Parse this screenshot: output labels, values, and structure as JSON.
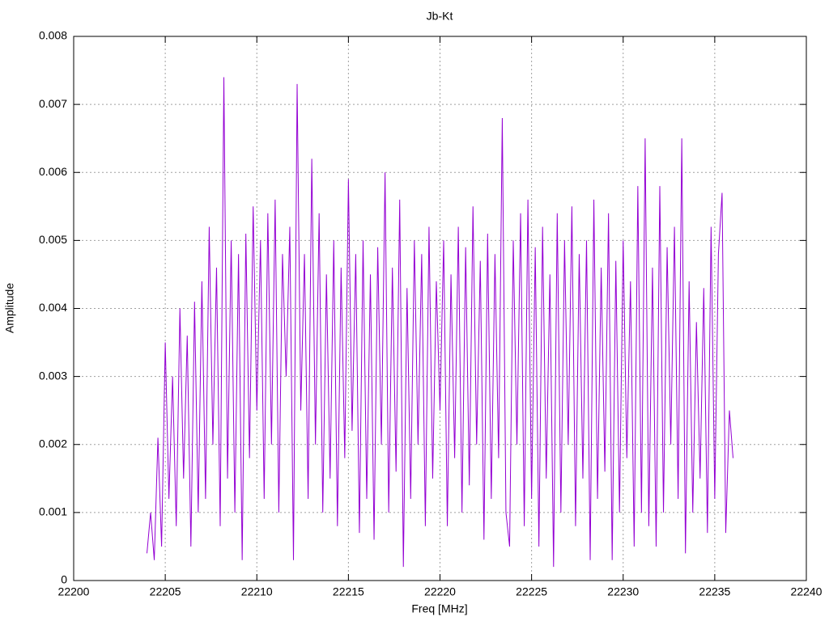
{
  "chart_data": {
    "type": "line",
    "title": "Jb-Kt",
    "x_label": "Freq [MHz]",
    "y_label": "Amplitude",
    "color": "#9400d3",
    "grid": true,
    "xlim": [
      22200,
      22240
    ],
    "xticks": [
      22200,
      22205,
      22210,
      22215,
      22220,
      22225,
      22230,
      22235,
      22240
    ],
    "ylim": [
      0,
      0.008
    ],
    "yticks": [
      0,
      0.001,
      0.002,
      0.003,
      0.004,
      0.005,
      0.006,
      0.007,
      0.008
    ],
    "x": [
      22204.0,
      22204.2,
      22204.4,
      22204.6,
      22204.8,
      22205.0,
      22205.2,
      22205.4,
      22205.6,
      22205.8,
      22206.0,
      22206.2,
      22206.4,
      22206.6,
      22206.8,
      22207.0,
      22207.2,
      22207.4,
      22207.6,
      22207.8,
      22208.0,
      22208.2,
      22208.4,
      22208.6,
      22208.8,
      22209.0,
      22209.2,
      22209.4,
      22209.6,
      22209.8,
      22210.0,
      22210.2,
      22210.4,
      22210.6,
      22210.8,
      22211.0,
      22211.2,
      22211.4,
      22211.6,
      22211.8,
      22212.0,
      22212.2,
      22212.4,
      22212.6,
      22212.8,
      22213.0,
      22213.2,
      22213.4,
      22213.6,
      22213.8,
      22214.0,
      22214.2,
      22214.4,
      22214.6,
      22214.8,
      22215.0,
      22215.2,
      22215.4,
      22215.6,
      22215.8,
      22216.0,
      22216.2,
      22216.4,
      22216.6,
      22216.8,
      22217.0,
      22217.2,
      22217.4,
      22217.6,
      22217.8,
      22218.0,
      22218.2,
      22218.4,
      22218.6,
      22218.8,
      22219.0,
      22219.2,
      22219.4,
      22219.6,
      22219.8,
      22220.0,
      22220.2,
      22220.4,
      22220.6,
      22220.8,
      22221.0,
      22221.2,
      22221.4,
      22221.6,
      22221.8,
      22222.0,
      22222.2,
      22222.4,
      22222.6,
      22222.8,
      22223.0,
      22223.2,
      22223.4,
      22223.6,
      22223.8,
      22224.0,
      22224.2,
      22224.4,
      22224.6,
      22224.8,
      22225.0,
      22225.2,
      22225.4,
      22225.6,
      22225.8,
      22226.0,
      22226.2,
      22226.4,
      22226.6,
      22226.8,
      22227.0,
      22227.2,
      22227.4,
      22227.6,
      22227.8,
      22228.0,
      22228.2,
      22228.4,
      22228.6,
      22228.8,
      22229.0,
      22229.2,
      22229.4,
      22229.6,
      22229.8,
      22230.0,
      22230.2,
      22230.4,
      22230.6,
      22230.8,
      22231.0,
      22231.2,
      22231.4,
      22231.6,
      22231.8,
      22232.0,
      22232.2,
      22232.4,
      22232.6,
      22232.8,
      22233.0,
      22233.2,
      22233.4,
      22233.6,
      22233.8,
      22234.0,
      22234.2,
      22234.4,
      22234.6,
      22234.8,
      22235.0,
      22235.2,
      22235.4,
      22235.6,
      22235.8,
      22236.0
    ],
    "values": [
      0.0004,
      0.001,
      0.0003,
      0.0021,
      0.0005,
      0.0035,
      0.0012,
      0.003,
      0.0008,
      0.004,
      0.0015,
      0.0036,
      0.0005,
      0.0041,
      0.001,
      0.0044,
      0.0012,
      0.0052,
      0.002,
      0.0046,
      0.0008,
      0.0074,
      0.0015,
      0.005,
      0.001,
      0.0048,
      0.0003,
      0.0051,
      0.0018,
      0.0055,
      0.0025,
      0.005,
      0.0012,
      0.0054,
      0.002,
      0.0056,
      0.001,
      0.0048,
      0.003,
      0.0052,
      0.0003,
      0.0073,
      0.0025,
      0.0048,
      0.0012,
      0.0062,
      0.002,
      0.0054,
      0.001,
      0.0045,
      0.0015,
      0.005,
      0.0008,
      0.0046,
      0.0018,
      0.0059,
      0.0022,
      0.0048,
      0.0007,
      0.005,
      0.0012,
      0.0045,
      0.0006,
      0.0049,
      0.002,
      0.006,
      0.001,
      0.0046,
      0.0016,
      0.0056,
      0.0002,
      0.0043,
      0.0012,
      0.005,
      0.002,
      0.0048,
      0.0008,
      0.0052,
      0.0015,
      0.0044,
      0.0025,
      0.005,
      0.0008,
      0.0045,
      0.0018,
      0.0052,
      0.001,
      0.0049,
      0.0014,
      0.0055,
      0.002,
      0.0047,
      0.0006,
      0.0051,
      0.0012,
      0.0048,
      0.0018,
      0.0068,
      0.001,
      0.0005,
      0.005,
      0.002,
      0.0054,
      0.0008,
      0.0056,
      0.0012,
      0.0049,
      0.0005,
      0.0052,
      0.0015,
      0.0045,
      0.0002,
      0.0054,
      0.001,
      0.005,
      0.002,
      0.0055,
      0.0008,
      0.0048,
      0.0015,
      0.005,
      0.0003,
      0.0056,
      0.0012,
      0.0046,
      0.0016,
      0.0054,
      0.0003,
      0.0047,
      0.001,
      0.005,
      0.0018,
      0.0044,
      0.0005,
      0.0058,
      0.001,
      0.0065,
      0.0008,
      0.0046,
      0.0005,
      0.0058,
      0.001,
      0.0049,
      0.002,
      0.0052,
      0.0012,
      0.0065,
      0.0004,
      0.0044,
      0.001,
      0.0038,
      0.0015,
      0.0043,
      0.0007,
      0.0052,
      0.0012,
      0.0048,
      0.0057,
      0.0007,
      0.0025,
      0.0018
    ]
  }
}
